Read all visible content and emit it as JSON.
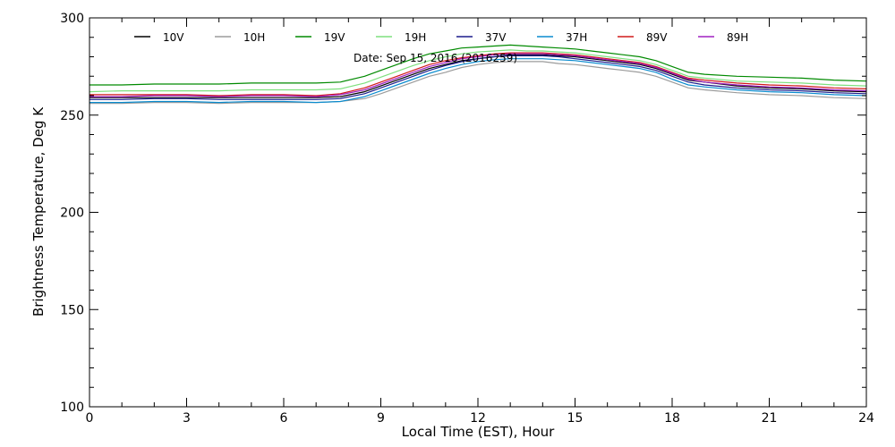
{
  "chart_data": {
    "type": "line",
    "title": "",
    "annotation": "Date: Sep 15, 2016 (2016259)",
    "xlabel": "Local Time (EST), Hour",
    "ylabel": "Brightness Temperature, Deg  K",
    "xlim": [
      0,
      24
    ],
    "ylim": [
      100,
      300
    ],
    "xticks": [
      0,
      3,
      6,
      9,
      12,
      15,
      18,
      21,
      24
    ],
    "yticks": [
      100,
      150,
      200,
      250,
      300
    ],
    "grid": false,
    "legend_position": "top",
    "x": [
      0,
      1,
      2,
      3,
      4,
      5,
      6,
      7,
      7.75,
      8.5,
      9,
      9.5,
      10,
      10.5,
      11,
      11.5,
      12,
      12.5,
      13,
      13.5,
      14,
      14.5,
      15,
      15.5,
      16,
      16.5,
      17,
      17.5,
      18,
      18.5,
      19,
      20,
      21,
      22,
      23,
      24
    ],
    "series": [
      {
        "name": "10V",
        "color": "#000000",
        "values": [
          259,
          259,
          259,
          259,
          259,
          259,
          259,
          259,
          259.5,
          262,
          265,
          268,
          271,
          274,
          276,
          278,
          279,
          280,
          281,
          281,
          281,
          280.5,
          280,
          279,
          278,
          277,
          276,
          274,
          271,
          268,
          267,
          265,
          264,
          263.5,
          262.5,
          262
        ]
      },
      {
        "name": "10H",
        "color": "#9b9b9b",
        "values": [
          256,
          256,
          256.5,
          256.5,
          256,
          256.5,
          256.5,
          256.5,
          257,
          258.5,
          261,
          264,
          267,
          270,
          272,
          274.5,
          276,
          277,
          277.5,
          277.5,
          277.5,
          276.5,
          276,
          275,
          274,
          273,
          272,
          270,
          267,
          264,
          263,
          261.5,
          260.5,
          260,
          259,
          258.5
        ]
      },
      {
        "name": "19V",
        "color": "#008a00",
        "values": [
          265.5,
          265.5,
          266,
          266,
          266,
          266.5,
          266.5,
          266.5,
          267,
          270,
          273,
          276,
          279,
          281.5,
          283,
          284.5,
          285,
          285.5,
          286,
          285.5,
          285,
          284.5,
          284,
          283,
          282,
          281,
          280,
          278,
          275,
          272,
          271,
          270,
          269.5,
          269,
          268,
          267.5
        ]
      },
      {
        "name": "19H",
        "color": "#7ee07e",
        "values": [
          262,
          262.5,
          262.5,
          262.5,
          262.5,
          263,
          263,
          263,
          263.5,
          266.5,
          269.5,
          272.5,
          275.5,
          278,
          280,
          281.5,
          282.5,
          283,
          283.5,
          283,
          283,
          282.5,
          282,
          281,
          280,
          279,
          278,
          276,
          273,
          270,
          269,
          267.5,
          267,
          266.5,
          265.5,
          265
        ]
      },
      {
        "name": "37V",
        "color": "#1c1c8c",
        "values": [
          258,
          258,
          258.5,
          258.5,
          258,
          258,
          258,
          258,
          258.5,
          261,
          264,
          267,
          270,
          273,
          275.5,
          277.5,
          279,
          280,
          280.5,
          280.5,
          280.5,
          280,
          279,
          278,
          277,
          276,
          275,
          273,
          270,
          267,
          265.5,
          264,
          263,
          262.5,
          261.5,
          261
        ]
      },
      {
        "name": "37H",
        "color": "#0a8ccf",
        "values": [
          256.5,
          256.5,
          257,
          257,
          256.5,
          257,
          257,
          256.5,
          257,
          259.5,
          262.5,
          265.5,
          268.5,
          271.5,
          274,
          276,
          277.5,
          278.5,
          279,
          279,
          279,
          278.5,
          278,
          277,
          276,
          275,
          274,
          272,
          268.5,
          265.5,
          264.5,
          263,
          262,
          261.5,
          260.5,
          260
        ]
      },
      {
        "name": "89V",
        "color": "#d11a1a",
        "values": [
          260.5,
          260.5,
          260.5,
          260.5,
          260,
          260.5,
          260.5,
          260,
          261,
          264,
          267,
          270,
          273,
          276,
          278,
          279.5,
          280.5,
          281.5,
          282,
          282,
          282,
          281.5,
          281,
          280,
          279,
          278,
          277,
          275,
          272,
          269,
          268,
          266.5,
          265.5,
          265,
          264,
          263.5
        ]
      },
      {
        "name": "89H",
        "color": "#a020c0",
        "values": [
          259.5,
          259.5,
          260,
          260,
          259.5,
          260,
          260,
          259.5,
          260.5,
          263,
          266,
          269,
          272,
          275,
          277,
          279,
          280,
          281,
          281.5,
          281.5,
          281.5,
          281,
          280.5,
          279.5,
          278.5,
          277.5,
          276.5,
          274.5,
          271.5,
          268.5,
          267,
          265.5,
          264.5,
          264,
          263,
          262.5
        ]
      }
    ]
  }
}
